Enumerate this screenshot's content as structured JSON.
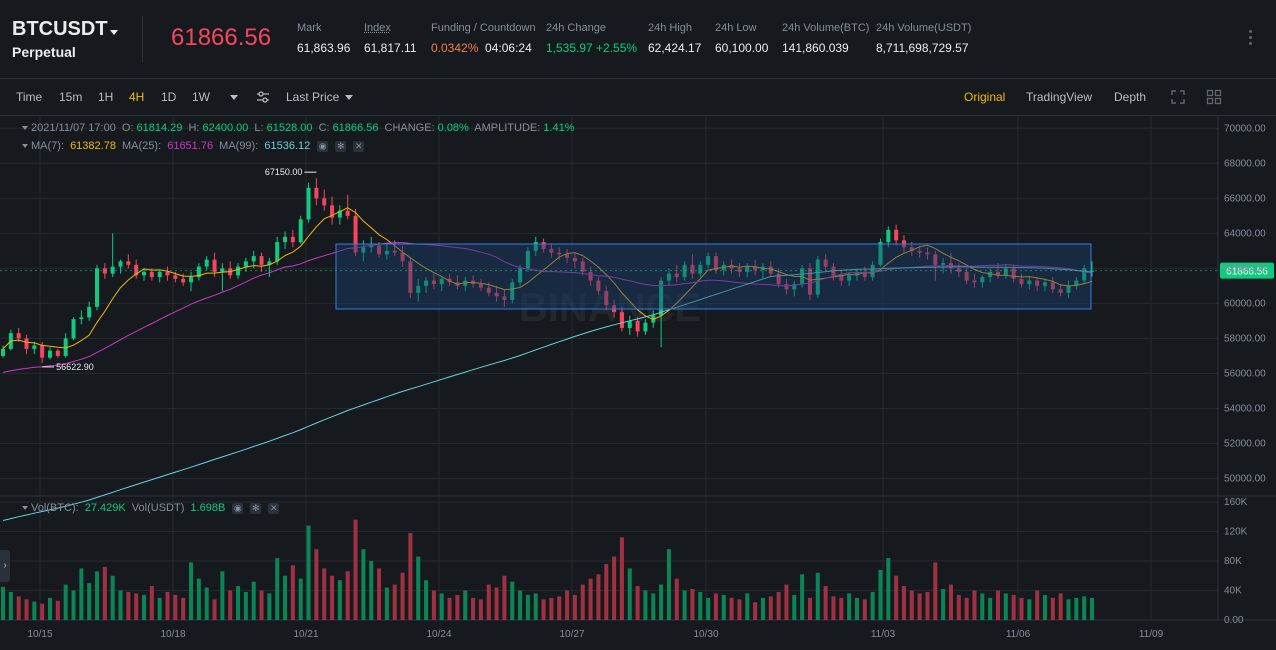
{
  "header": {
    "symbol": "BTCUSDT",
    "contract": "Perpetual",
    "price": "61866.56",
    "stats": [
      {
        "label": "Mark",
        "value": "61,863.96"
      },
      {
        "label": "Index",
        "value": "61,817.11"
      },
      {
        "label": "Funding / Countdown",
        "value": "0.0342%",
        "value2": "04:06:24"
      },
      {
        "label": "24h Change",
        "value": "1,535.97 +2.55%"
      },
      {
        "label": "24h High",
        "value": "62,424.17"
      },
      {
        "label": "24h Low",
        "value": "60,100.00"
      },
      {
        "label": "24h Volume(BTC)",
        "value": "141,860.039"
      },
      {
        "label": "24h Volume(USDT)",
        "value": "8,711,698,729.57"
      }
    ]
  },
  "toolbar": {
    "intervals": [
      "Time",
      "15m",
      "1H",
      "4H",
      "1D",
      "1W"
    ],
    "active_interval": "4H",
    "price_type": "Last Price",
    "views": [
      "Original",
      "TradingView",
      "Depth"
    ],
    "active_view": "Original"
  },
  "legend": {
    "ohlc_date": "2021/11/07 17:00",
    "o_label": "O:",
    "o": "61814.29",
    "h_label": "H:",
    "h": "62400.00",
    "l_label": "L:",
    "l": "61528.00",
    "c_label": "C:",
    "c": "61866.56",
    "change_label": "CHANGE:",
    "change": "0.08%",
    "amp_label": "AMPLITUDE:",
    "amp": "1.41%",
    "ma7_label": "MA(7):",
    "ma7": "61382.78",
    "ma25_label": "MA(25):",
    "ma25": "61651.76",
    "ma99_label": "MA(99):",
    "ma99": "61536.12",
    "vol_btc_label": "Vol(BTC):",
    "vol_btc": "27.429K",
    "vol_usdt_label": "Vol(USDT)",
    "vol_usdt": "1.698B"
  },
  "colors": {
    "up": "#0ecb81",
    "down": "#f6465d",
    "ma7": "#f0b90b",
    "ma25": "#c839c5",
    "ma99": "#69d2d8",
    "accent": "#f0b90b",
    "bg": "#161a1e",
    "grid": "#252a30"
  },
  "chart_data": {
    "type": "candlestick",
    "price_ticks": [
      "70000.00",
      "68000.00",
      "66000.00",
      "64000.00",
      "62000.00",
      "60000.00",
      "58000.00",
      "56000.00",
      "54000.00",
      "52000.00",
      "50000.00"
    ],
    "price_range": [
      49000,
      70700
    ],
    "volume_ticks": [
      "160K",
      "120K",
      "80K",
      "40K",
      "0.00"
    ],
    "volume_range": [
      0,
      160000
    ],
    "date_ticks": [
      "10/15",
      "10/18",
      "10/21",
      "10/24",
      "10/27",
      "10/30",
      "11/03",
      "11/06",
      "11/09"
    ],
    "last_price_tag": "61866.56",
    "max_marker": "67150.00",
    "min_marker": "56622.90",
    "ohlc": [
      [
        57000,
        57600,
        56900,
        57400
      ],
      [
        57400,
        58500,
        57300,
        58300
      ],
      [
        58300,
        58600,
        57800,
        58000
      ],
      [
        58000,
        58200,
        57100,
        57400
      ],
      [
        57400,
        57800,
        57100,
        57600
      ],
      [
        57600,
        57800,
        56600,
        56900
      ],
      [
        56900,
        57500,
        56800,
        57300
      ],
      [
        57300,
        57400,
        56900,
        57000
      ],
      [
        57000,
        58300,
        56900,
        58000
      ],
      [
        58000,
        59200,
        57900,
        59100
      ],
      [
        59100,
        59600,
        58800,
        59200
      ],
      [
        59200,
        60100,
        59000,
        59800
      ],
      [
        59800,
        62200,
        59600,
        62000
      ],
      [
        62000,
        62300,
        61400,
        61700
      ],
      [
        61700,
        64000,
        61500,
        62100
      ],
      [
        62100,
        62500,
        61700,
        62400
      ],
      [
        62400,
        62800,
        62000,
        62200
      ],
      [
        62200,
        62500,
        61400,
        61600
      ],
      [
        61600,
        62000,
        61300,
        61800
      ],
      [
        61800,
        62000,
        61300,
        61500
      ],
      [
        61500,
        61900,
        61200,
        61800
      ],
      [
        61800,
        62100,
        61300,
        61600
      ],
      [
        61600,
        61800,
        61200,
        61400
      ],
      [
        61400,
        61700,
        61000,
        61200
      ],
      [
        61200,
        61800,
        60700,
        61500
      ],
      [
        61500,
        62300,
        61300,
        62100
      ],
      [
        62100,
        62700,
        61900,
        62500
      ],
      [
        62500,
        62900,
        61500,
        61800
      ],
      [
        61800,
        62300,
        60700,
        62000
      ],
      [
        62000,
        62400,
        61400,
        61600
      ],
      [
        61600,
        62300,
        61400,
        62100
      ],
      [
        62100,
        62600,
        61800,
        62400
      ],
      [
        62400,
        63000,
        62000,
        62700
      ],
      [
        62700,
        62900,
        61800,
        62200
      ],
      [
        62200,
        62600,
        61500,
        62400
      ],
      [
        62400,
        63800,
        62200,
        63500
      ],
      [
        63500,
        64100,
        63100,
        63800
      ],
      [
        63800,
        64200,
        63200,
        63500
      ],
      [
        63500,
        65000,
        63400,
        64800
      ],
      [
        64800,
        66900,
        64600,
        66600
      ],
      [
        66600,
        67150,
        65600,
        66000
      ],
      [
        66000,
        66500,
        65300,
        65600
      ],
      [
        65600,
        66100,
        64500,
        64900
      ],
      [
        64900,
        65600,
        64500,
        65300
      ],
      [
        65300,
        66200,
        64800,
        65000
      ],
      [
        65000,
        65400,
        62700,
        62900
      ],
      [
        62900,
        63600,
        62400,
        63200
      ],
      [
        63200,
        63800,
        62900,
        63300
      ],
      [
        63300,
        63500,
        62600,
        62800
      ],
      [
        62800,
        63400,
        62500,
        63000
      ],
      [
        63000,
        63600,
        62700,
        62900
      ],
      [
        62900,
        63300,
        62100,
        62400
      ],
      [
        62400,
        62600,
        60300,
        60600
      ],
      [
        60600,
        61400,
        60100,
        61000
      ],
      [
        61000,
        61500,
        60600,
        61300
      ],
      [
        61300,
        61700,
        60800,
        61100
      ],
      [
        61100,
        61500,
        60700,
        61400
      ],
      [
        61400,
        61700,
        61000,
        61200
      ],
      [
        61200,
        61600,
        60800,
        61000
      ],
      [
        61000,
        61500,
        60700,
        61300
      ],
      [
        61300,
        61600,
        60900,
        61100
      ],
      [
        61100,
        61400,
        60700,
        60900
      ],
      [
        60900,
        61200,
        60400,
        60600
      ],
      [
        60600,
        61000,
        60100,
        60400
      ],
      [
        60400,
        60800,
        59800,
        60200
      ],
      [
        60200,
        61400,
        60000,
        61200
      ],
      [
        61200,
        62200,
        61000,
        62000
      ],
      [
        62000,
        63200,
        61800,
        63000
      ],
      [
        63000,
        63800,
        62700,
        63500
      ],
      [
        63500,
        63700,
        62900,
        63100
      ],
      [
        63100,
        63400,
        62600,
        62900
      ],
      [
        62900,
        63200,
        62500,
        62800
      ],
      [
        62800,
        63100,
        62300,
        62600
      ],
      [
        62600,
        62900,
        62000,
        62400
      ],
      [
        62400,
        62600,
        61600,
        61800
      ],
      [
        61800,
        62100,
        61000,
        61300
      ],
      [
        61300,
        61500,
        60500,
        60700
      ],
      [
        60700,
        61000,
        59600,
        59900
      ],
      [
        59900,
        60200,
        59200,
        59500
      ],
      [
        59500,
        59800,
        58400,
        58600
      ],
      [
        58600,
        59300,
        58200,
        59000
      ],
      [
        59000,
        59200,
        58100,
        58400
      ],
      [
        58400,
        59100,
        58200,
        58900
      ],
      [
        58900,
        59600,
        58600,
        59300
      ],
      [
        59300,
        61500,
        57500,
        61300
      ],
      [
        61300,
        62000,
        61000,
        61700
      ],
      [
        61700,
        62200,
        61200,
        61500
      ],
      [
        61500,
        62400,
        61300,
        62200
      ],
      [
        62200,
        62800,
        61400,
        61700
      ],
      [
        61700,
        62400,
        61500,
        62200
      ],
      [
        62200,
        62900,
        62000,
        62700
      ],
      [
        62700,
        62900,
        61700,
        61900
      ],
      [
        61900,
        62400,
        61600,
        62200
      ],
      [
        62200,
        62500,
        61700,
        62000
      ],
      [
        62000,
        62300,
        61500,
        61800
      ],
      [
        61800,
        62300,
        61500,
        62100
      ],
      [
        62100,
        62500,
        61600,
        61900
      ],
      [
        61900,
        62300,
        61400,
        62100
      ],
      [
        62100,
        62400,
        61500,
        61700
      ],
      [
        61700,
        62000,
        60900,
        61100
      ],
      [
        61100,
        61400,
        60500,
        60800
      ],
      [
        60800,
        61300,
        60400,
        61100
      ],
      [
        61100,
        62200,
        60900,
        62000
      ],
      [
        62000,
        62300,
        60200,
        60500
      ],
      [
        60500,
        62700,
        60300,
        62500
      ],
      [
        62500,
        62800,
        61900,
        62100
      ],
      [
        62100,
        62300,
        61300,
        61600
      ],
      [
        61600,
        61900,
        61000,
        61300
      ],
      [
        61300,
        61800,
        61000,
        61600
      ],
      [
        61600,
        62000,
        61300,
        61800
      ],
      [
        61800,
        62100,
        61300,
        61500
      ],
      [
        61500,
        62400,
        61300,
        62200
      ],
      [
        62200,
        63700,
        62100,
        63500
      ],
      [
        63500,
        64400,
        63200,
        64200
      ],
      [
        64200,
        64500,
        63300,
        63600
      ],
      [
        63600,
        63900,
        62900,
        63200
      ],
      [
        63200,
        63500,
        62700,
        63000
      ],
      [
        63000,
        63300,
        62600,
        62900
      ],
      [
        62900,
        63200,
        62500,
        62800
      ],
      [
        62800,
        63000,
        61300,
        62200
      ],
      [
        62200,
        62600,
        61700,
        62300
      ],
      [
        62300,
        62900,
        61700,
        62000
      ],
      [
        62000,
        62300,
        61500,
        61800
      ],
      [
        61800,
        62000,
        61100,
        61300
      ],
      [
        61300,
        61700,
        60900,
        61200
      ],
      [
        61200,
        61600,
        60900,
        61500
      ],
      [
        61500,
        62000,
        61200,
        61800
      ],
      [
        61800,
        62300,
        61400,
        61600
      ],
      [
        61600,
        62200,
        61400,
        62000
      ],
      [
        62000,
        62200,
        61200,
        61400
      ],
      [
        61400,
        61700,
        60900,
        61100
      ],
      [
        61100,
        61500,
        60800,
        61300
      ],
      [
        61300,
        61500,
        60700,
        61000
      ],
      [
        61000,
        61400,
        60700,
        61200
      ],
      [
        61200,
        61500,
        60600,
        60800
      ],
      [
        60800,
        61100,
        60400,
        60600
      ],
      [
        60600,
        61300,
        60300,
        61000
      ],
      [
        61000,
        61500,
        60800,
        61300
      ],
      [
        61300,
        62200,
        61100,
        62000
      ],
      [
        61814,
        62400,
        61528,
        61866
      ]
    ],
    "volume": [
      45000,
      38000,
      32000,
      28000,
      25000,
      22000,
      30000,
      26000,
      48000,
      40000,
      70000,
      50000,
      66000,
      72000,
      60000,
      40000,
      38000,
      36000,
      34000,
      46000,
      30000,
      38000,
      34000,
      30000,
      78000,
      56000,
      44000,
      28000,
      66000,
      40000,
      46000,
      38000,
      52000,
      40000,
      36000,
      84000,
      60000,
      74000,
      56000,
      128000,
      96000,
      70000,
      60000,
      54000,
      66000,
      136000,
      96000,
      80000,
      70000,
      44000,
      48000,
      64000,
      118000,
      86000,
      54000,
      40000,
      36000,
      30000,
      34000,
      40000,
      30000,
      28000,
      48000,
      44000,
      60000,
      52000,
      40000,
      34000,
      36000,
      28000,
      30000,
      32000,
      40000,
      34000,
      48000,
      56000,
      62000,
      76000,
      86000,
      112000,
      70000,
      46000,
      40000,
      36000,
      48000,
      96000,
      56000,
      40000,
      42000,
      38000,
      30000,
      36000,
      34000,
      30000,
      28000,
      36000,
      24000,
      30000,
      32000,
      38000,
      48000,
      34000,
      62000,
      30000,
      64000,
      46000,
      32000,
      30000,
      36000,
      30000,
      28000,
      38000,
      68000,
      84000,
      60000,
      46000,
      40000,
      36000,
      38000,
      78000,
      42000,
      48000,
      34000,
      30000,
      40000,
      36000,
      30000,
      40000,
      36000,
      34000,
      30000,
      28000,
      40000,
      34000,
      30000,
      36000,
      28000,
      30000,
      32000,
      30000
    ]
  }
}
